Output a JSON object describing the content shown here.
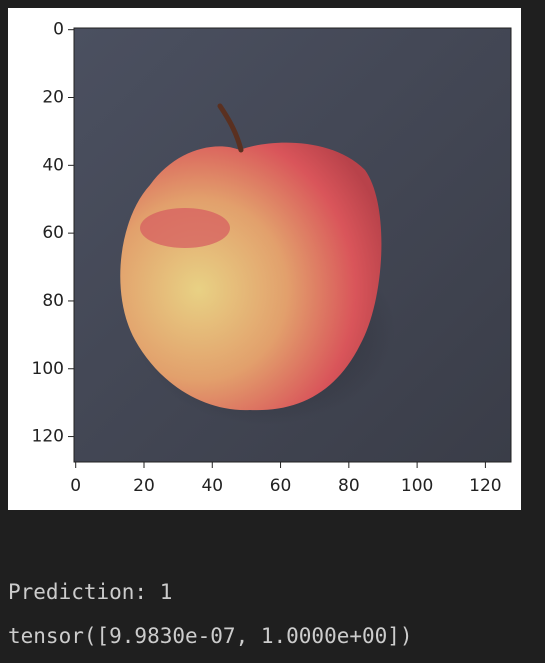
{
  "chart_data": {
    "type": "image",
    "xlim": [
      -0.5,
      127.5
    ],
    "ylim": [
      127.5,
      -0.5
    ],
    "xticks": [
      0,
      20,
      40,
      60,
      80,
      100,
      120
    ],
    "yticks": [
      0,
      20,
      40,
      60,
      80,
      100,
      120
    ]
  },
  "output": {
    "lines": [
      "Prediction: 1",
      "tensor([9.9830e-07, 1.0000e+00])"
    ]
  }
}
